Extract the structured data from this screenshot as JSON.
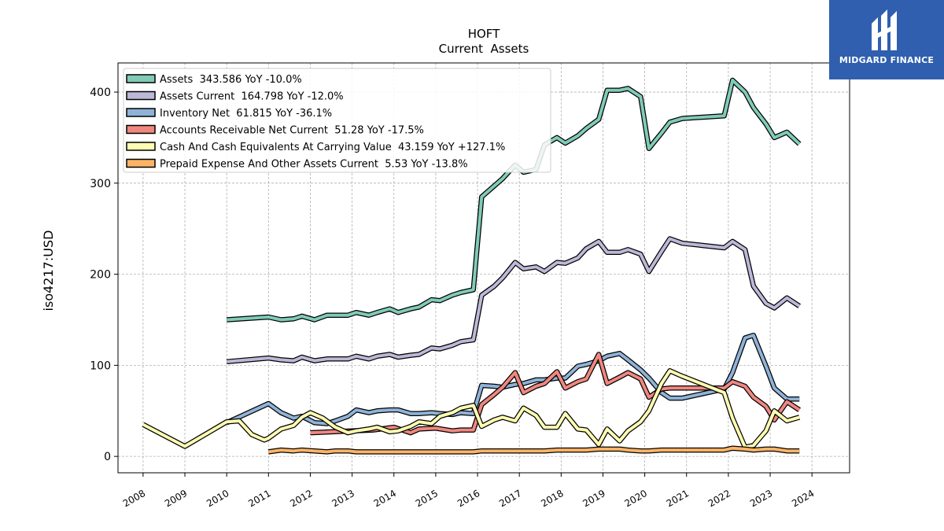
{
  "logo": {
    "text": "MIDGARD FINANCE",
    "color": "#2f5fae"
  },
  "chart_data": {
    "type": "line",
    "title": "HOFT",
    "subtitle": "Current  Assets",
    "xlabel": "",
    "ylabel": "iso4217:USD",
    "xlim": [
      2007.4,
      2024.9
    ],
    "ylim": [
      -18,
      432
    ],
    "xticks": [
      2008,
      2009,
      2010,
      2011,
      2012,
      2013,
      2014,
      2015,
      2016,
      2017,
      2018,
      2019,
      2020,
      2021,
      2022,
      2023,
      2024
    ],
    "yticks": [
      0,
      100,
      200,
      300,
      400
    ],
    "grid": true,
    "legend_position": "top-left",
    "series": [
      {
        "name": "Assets  343.586 YoY -10.0%",
        "color": "#80cbb7",
        "points": [
          [
            2010.0,
            150
          ],
          [
            2011.0,
            153
          ],
          [
            2011.3,
            150
          ],
          [
            2011.6,
            151
          ],
          [
            2011.8,
            154
          ],
          [
            2012.1,
            150
          ],
          [
            2012.4,
            155
          ],
          [
            2012.6,
            155
          ],
          [
            2012.9,
            155
          ],
          [
            2013.1,
            158
          ],
          [
            2013.4,
            155
          ],
          [
            2013.6,
            158
          ],
          [
            2013.9,
            162
          ],
          [
            2014.1,
            158
          ],
          [
            2014.4,
            162
          ],
          [
            2014.6,
            164
          ],
          [
            2014.9,
            172
          ],
          [
            2015.1,
            171
          ],
          [
            2015.4,
            177
          ],
          [
            2015.6,
            180
          ],
          [
            2015.9,
            183
          ],
          [
            2016.1,
            285
          ],
          [
            2016.4,
            297
          ],
          [
            2016.6,
            305
          ],
          [
            2016.9,
            320
          ],
          [
            2017.1,
            312
          ],
          [
            2017.4,
            315
          ],
          [
            2017.6,
            342
          ],
          [
            2017.9,
            350
          ],
          [
            2018.1,
            344
          ],
          [
            2018.4,
            352
          ],
          [
            2018.6,
            360
          ],
          [
            2018.9,
            370
          ],
          [
            2019.1,
            402
          ],
          [
            2019.4,
            402
          ],
          [
            2019.6,
            404
          ],
          [
            2019.9,
            395
          ],
          [
            2020.1,
            338
          ],
          [
            2020.4,
            355
          ],
          [
            2020.6,
            367
          ],
          [
            2020.9,
            371
          ],
          [
            2021.9,
            374
          ],
          [
            2022.1,
            413
          ],
          [
            2022.4,
            400
          ],
          [
            2022.6,
            383
          ],
          [
            2022.9,
            365
          ],
          [
            2023.1,
            350
          ],
          [
            2023.4,
            356
          ],
          [
            2023.7,
            343
          ]
        ]
      },
      {
        "name": "Assets Current  164.798 YoY -12.0%",
        "color": "#bcb8d8",
        "points": [
          [
            2010.0,
            104
          ],
          [
            2011.0,
            108
          ],
          [
            2011.3,
            106
          ],
          [
            2011.6,
            105
          ],
          [
            2011.8,
            109
          ],
          [
            2012.1,
            105
          ],
          [
            2012.4,
            107
          ],
          [
            2012.6,
            107
          ],
          [
            2012.9,
            107
          ],
          [
            2013.1,
            110
          ],
          [
            2013.4,
            107
          ],
          [
            2013.6,
            110
          ],
          [
            2013.9,
            112
          ],
          [
            2014.1,
            109
          ],
          [
            2014.4,
            111
          ],
          [
            2014.6,
            112
          ],
          [
            2014.9,
            119
          ],
          [
            2015.1,
            118
          ],
          [
            2015.4,
            122
          ],
          [
            2015.6,
            126
          ],
          [
            2015.9,
            128
          ],
          [
            2016.1,
            177
          ],
          [
            2016.4,
            187
          ],
          [
            2016.6,
            196
          ],
          [
            2016.9,
            213
          ],
          [
            2017.1,
            206
          ],
          [
            2017.4,
            208
          ],
          [
            2017.6,
            203
          ],
          [
            2017.9,
            213
          ],
          [
            2018.1,
            212
          ],
          [
            2018.4,
            218
          ],
          [
            2018.6,
            228
          ],
          [
            2018.9,
            236
          ],
          [
            2019.1,
            224
          ],
          [
            2019.4,
            224
          ],
          [
            2019.6,
            227
          ],
          [
            2019.9,
            222
          ],
          [
            2020.1,
            203
          ],
          [
            2020.4,
            225
          ],
          [
            2020.6,
            239
          ],
          [
            2020.9,
            234
          ],
          [
            2021.9,
            229
          ],
          [
            2022.1,
            236
          ],
          [
            2022.4,
            227
          ],
          [
            2022.6,
            187
          ],
          [
            2022.9,
            168
          ],
          [
            2023.1,
            163
          ],
          [
            2023.4,
            174
          ],
          [
            2023.7,
            165
          ]
        ]
      },
      {
        "name": "Inventory Net  61.815 YoY -36.1%",
        "color": "#8fb3d7",
        "points": [
          [
            2010.0,
            37
          ],
          [
            2011.0,
            58
          ],
          [
            2011.3,
            48
          ],
          [
            2011.6,
            42
          ],
          [
            2011.8,
            44
          ],
          [
            2012.1,
            37
          ],
          [
            2012.4,
            36
          ],
          [
            2012.6,
            39
          ],
          [
            2012.9,
            44
          ],
          [
            2013.1,
            51
          ],
          [
            2013.4,
            48
          ],
          [
            2013.6,
            50
          ],
          [
            2013.9,
            51
          ],
          [
            2014.1,
            51
          ],
          [
            2014.4,
            47
          ],
          [
            2014.6,
            47
          ],
          [
            2014.9,
            48
          ],
          [
            2015.1,
            47
          ],
          [
            2015.4,
            46
          ],
          [
            2015.6,
            48
          ],
          [
            2015.9,
            47
          ],
          [
            2016.1,
            78
          ],
          [
            2016.4,
            77
          ],
          [
            2016.6,
            76
          ],
          [
            2016.9,
            79
          ],
          [
            2017.1,
            80
          ],
          [
            2017.4,
            84
          ],
          [
            2017.6,
            84
          ],
          [
            2017.9,
            86
          ],
          [
            2018.1,
            86
          ],
          [
            2018.4,
            99
          ],
          [
            2018.6,
            101
          ],
          [
            2018.9,
            105
          ],
          [
            2019.1,
            110
          ],
          [
            2019.4,
            113
          ],
          [
            2019.6,
            106
          ],
          [
            2019.9,
            95
          ],
          [
            2020.1,
            86
          ],
          [
            2020.4,
            70
          ],
          [
            2020.6,
            64
          ],
          [
            2020.9,
            64
          ],
          [
            2021.9,
            74
          ],
          [
            2022.1,
            92
          ],
          [
            2022.4,
            130
          ],
          [
            2022.6,
            133
          ],
          [
            2022.9,
            99
          ],
          [
            2023.1,
            75
          ],
          [
            2023.4,
            63
          ],
          [
            2023.7,
            63
          ]
        ]
      },
      {
        "name": "Accounts Receivable Net Current  51.28 YoY -17.5%",
        "color": "#f0877f",
        "points": [
          [
            2012.0,
            26
          ],
          [
            2013.0,
            28
          ],
          [
            2013.5,
            29
          ],
          [
            2014.0,
            32
          ],
          [
            2014.4,
            26
          ],
          [
            2014.6,
            30
          ],
          [
            2015.0,
            31
          ],
          [
            2015.4,
            28
          ],
          [
            2015.6,
            29
          ],
          [
            2015.9,
            29
          ],
          [
            2016.1,
            57
          ],
          [
            2016.4,
            68
          ],
          [
            2016.6,
            76
          ],
          [
            2016.9,
            92
          ],
          [
            2017.1,
            70
          ],
          [
            2017.4,
            77
          ],
          [
            2017.6,
            80
          ],
          [
            2017.9,
            93
          ],
          [
            2018.1,
            75
          ],
          [
            2018.4,
            82
          ],
          [
            2018.6,
            85
          ],
          [
            2018.9,
            112
          ],
          [
            2019.1,
            80
          ],
          [
            2019.4,
            87
          ],
          [
            2019.6,
            92
          ],
          [
            2019.9,
            85
          ],
          [
            2020.1,
            65
          ],
          [
            2020.4,
            74
          ],
          [
            2020.6,
            75
          ],
          [
            2020.9,
            75
          ],
          [
            2021.9,
            75
          ],
          [
            2022.1,
            82
          ],
          [
            2022.4,
            77
          ],
          [
            2022.6,
            65
          ],
          [
            2022.9,
            55
          ],
          [
            2023.1,
            40
          ],
          [
            2023.4,
            60
          ],
          [
            2023.7,
            51
          ]
        ]
      },
      {
        "name": "Cash And Cash Equivalents At Carrying Value  43.159 YoY +127.1%",
        "color": "#fdfdb3",
        "points": [
          [
            2008.0,
            35
          ],
          [
            2009.0,
            11
          ],
          [
            2010.0,
            38
          ],
          [
            2010.3,
            39
          ],
          [
            2010.6,
            24
          ],
          [
            2010.9,
            18
          ],
          [
            2011.0,
            20
          ],
          [
            2011.3,
            30
          ],
          [
            2011.6,
            34
          ],
          [
            2011.8,
            43
          ],
          [
            2012.0,
            48
          ],
          [
            2012.3,
            42
          ],
          [
            2012.6,
            32
          ],
          [
            2012.9,
            26
          ],
          [
            2013.1,
            28
          ],
          [
            2013.4,
            30
          ],
          [
            2013.6,
            32
          ],
          [
            2013.9,
            27
          ],
          [
            2014.1,
            28
          ],
          [
            2014.4,
            33
          ],
          [
            2014.6,
            38
          ],
          [
            2014.9,
            36
          ],
          [
            2015.1,
            44
          ],
          [
            2015.4,
            48
          ],
          [
            2015.6,
            53
          ],
          [
            2015.9,
            56
          ],
          [
            2016.1,
            33
          ],
          [
            2016.4,
            40
          ],
          [
            2016.6,
            43
          ],
          [
            2016.9,
            39
          ],
          [
            2017.1,
            53
          ],
          [
            2017.4,
            45
          ],
          [
            2017.6,
            32
          ],
          [
            2017.9,
            32
          ],
          [
            2018.1,
            47
          ],
          [
            2018.4,
            30
          ],
          [
            2018.6,
            29
          ],
          [
            2018.9,
            13
          ],
          [
            2019.1,
            30
          ],
          [
            2019.4,
            17
          ],
          [
            2019.6,
            28
          ],
          [
            2019.9,
            38
          ],
          [
            2020.1,
            50
          ],
          [
            2020.4,
            80
          ],
          [
            2020.6,
            94
          ],
          [
            2020.9,
            88
          ],
          [
            2021.9,
            70
          ],
          [
            2022.1,
            42
          ],
          [
            2022.4,
            10
          ],
          [
            2022.6,
            12
          ],
          [
            2022.9,
            28
          ],
          [
            2023.1,
            50
          ],
          [
            2023.4,
            39
          ],
          [
            2023.7,
            43
          ]
        ]
      },
      {
        "name": "Prepaid Expense And Other Assets Current  5.53 YoY -13.8%",
        "color": "#fbb466",
        "points": [
          [
            2011.0,
            5
          ],
          [
            2011.3,
            7
          ],
          [
            2011.6,
            6
          ],
          [
            2011.8,
            7
          ],
          [
            2012.1,
            6
          ],
          [
            2012.4,
            5
          ],
          [
            2012.6,
            6
          ],
          [
            2012.9,
            6
          ],
          [
            2013.1,
            5
          ],
          [
            2013.4,
            5
          ],
          [
            2013.6,
            5
          ],
          [
            2013.9,
            5
          ],
          [
            2014.1,
            5
          ],
          [
            2014.4,
            5
          ],
          [
            2014.6,
            5
          ],
          [
            2014.9,
            5
          ],
          [
            2015.1,
            5
          ],
          [
            2015.4,
            5
          ],
          [
            2015.6,
            5
          ],
          [
            2015.9,
            5
          ],
          [
            2016.1,
            6
          ],
          [
            2016.4,
            6
          ],
          [
            2016.6,
            6
          ],
          [
            2016.9,
            6
          ],
          [
            2017.1,
            6
          ],
          [
            2017.4,
            6
          ],
          [
            2017.6,
            6
          ],
          [
            2017.9,
            7
          ],
          [
            2018.1,
            7
          ],
          [
            2018.4,
            7
          ],
          [
            2018.6,
            7
          ],
          [
            2018.9,
            8
          ],
          [
            2019.1,
            8
          ],
          [
            2019.4,
            8
          ],
          [
            2019.6,
            7
          ],
          [
            2019.9,
            6
          ],
          [
            2020.1,
            6
          ],
          [
            2020.4,
            7
          ],
          [
            2020.6,
            7
          ],
          [
            2020.9,
            7
          ],
          [
            2021.9,
            7
          ],
          [
            2022.1,
            9
          ],
          [
            2022.4,
            8
          ],
          [
            2022.6,
            7
          ],
          [
            2022.9,
            8
          ],
          [
            2023.1,
            8
          ],
          [
            2023.4,
            6
          ],
          [
            2023.7,
            6
          ]
        ]
      }
    ]
  }
}
